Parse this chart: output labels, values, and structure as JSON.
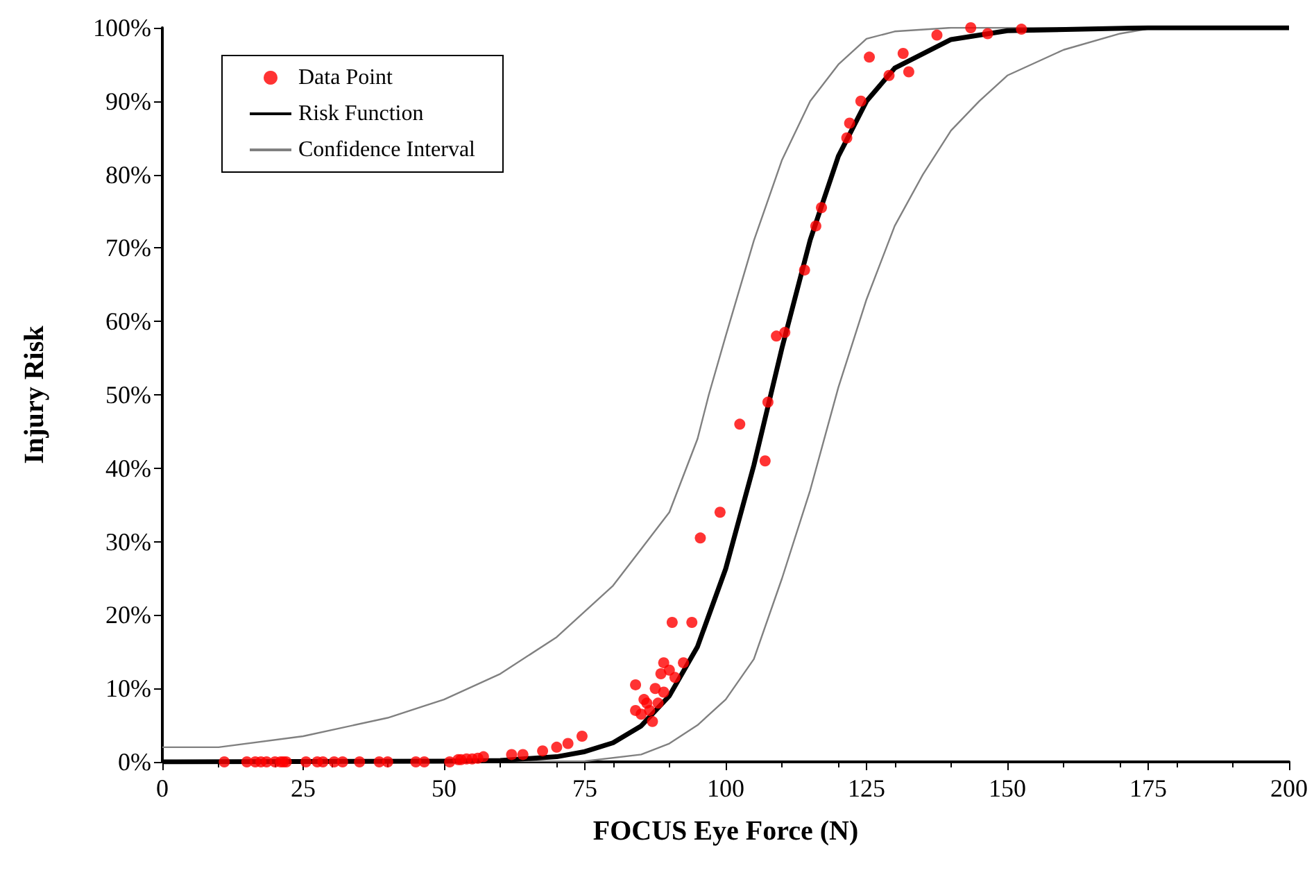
{
  "chart_data": {
    "type": "scatter",
    "xlabel": "FOCUS Eye Force (N)",
    "ylabel": "Injury Risk",
    "xlim": [
      0,
      200
    ],
    "xticks": [
      0,
      25,
      50,
      75,
      100,
      125,
      150,
      175,
      200
    ],
    "ylim": [
      0,
      100
    ],
    "yticks": [
      {
        "value": 0,
        "label": "0%"
      },
      {
        "value": 10,
        "label": "10%"
      },
      {
        "value": 20,
        "label": "20%"
      },
      {
        "value": 30,
        "label": "30%"
      },
      {
        "value": 40,
        "label": "40%"
      },
      {
        "value": 50,
        "label": "50%"
      },
      {
        "value": 60,
        "label": "60%"
      },
      {
        "value": 70,
        "label": "70%"
      },
      {
        "value": 80,
        "label": "80%"
      },
      {
        "value": 90,
        "label": "90%"
      },
      {
        "value": 100,
        "label": "100%"
      }
    ],
    "grid": false,
    "legend": "top left",
    "series": [
      {
        "name": "Data Point",
        "marker": "circle",
        "color": "#ff0000",
        "x": [
          11,
          15,
          16.5,
          17.5,
          18.5,
          20,
          21,
          21.5,
          22,
          25.5,
          27.5,
          28.5,
          30.5,
          32,
          35,
          38.5,
          40,
          45,
          46.5,
          51,
          52.5,
          53,
          54,
          55,
          56,
          57,
          62,
          64,
          67.5,
          70,
          72,
          74.5,
          84,
          84,
          85,
          85.5,
          86,
          86.5,
          87,
          87.5,
          88,
          88.5,
          89,
          89,
          90,
          90.5,
          91,
          92.5,
          94,
          95.5,
          99,
          102.5,
          107,
          107.5,
          109,
          110.5,
          114,
          116,
          117,
          121.5,
          122,
          124,
          125.5,
          129,
          131.5,
          132.5,
          137.5,
          143.5,
          146.5,
          152.5
        ],
        "values": [
          0,
          0,
          0,
          0,
          0,
          0,
          0,
          0,
          0,
          0,
          0,
          0,
          0,
          0,
          0,
          0,
          0,
          0,
          0,
          0,
          0.3,
          0.3,
          0.4,
          0.4,
          0.5,
          0.7,
          1,
          1,
          1.5,
          2,
          2.5,
          3.5,
          7,
          10.5,
          6.5,
          8.5,
          8,
          7,
          5.5,
          10,
          8,
          12,
          13.5,
          9.5,
          12.5,
          19,
          11.5,
          13.5,
          19,
          30.5,
          34,
          46,
          41,
          49,
          58,
          58.5,
          67,
          73,
          75.5,
          85,
          87,
          90,
          96,
          93.5,
          96.5,
          94,
          99,
          100,
          99.2,
          99.8
        ]
      },
      {
        "name": "Risk Function",
        "type": "line",
        "marker": "none",
        "line_style": "solid",
        "color": "#000000",
        "x": [
          0,
          50,
          60,
          70,
          75,
          80,
          85,
          90,
          95,
          100,
          105,
          108,
          110,
          115,
          120,
          125,
          130,
          140,
          150,
          175,
          200
        ],
        "values": [
          0,
          0.1,
          0.2,
          0.7,
          1.4,
          2.6,
          4.9,
          9,
          15.7,
          26.3,
          40.4,
          50,
          56.4,
          71.1,
          82.5,
          90,
          94.5,
          98.4,
          99.6,
          100,
          100
        ]
      },
      {
        "name": "Confidence Interval",
        "type": "line",
        "marker": "none",
        "line_style": "solid",
        "color": "#808080",
        "x": [
          0,
          10,
          25,
          40,
          50,
          60,
          70,
          80,
          85,
          90,
          95,
          97,
          100,
          105,
          110,
          115,
          120,
          125,
          130,
          140,
          200
        ],
        "values": [
          2,
          2,
          3.5,
          6,
          8.5,
          12,
          17,
          24,
          29,
          34,
          44,
          50,
          58,
          71,
          82,
          90,
          95,
          98.5,
          99.5,
          100,
          100
        ]
      },
      {
        "type": "line",
        "marker": "none",
        "line_style": "solid",
        "color": "#808080",
        "x": [
          0,
          75,
          85,
          90,
          95,
          100,
          105,
          110,
          115,
          120,
          125,
          130,
          135,
          140,
          145,
          150,
          160,
          170,
          176,
          200
        ],
        "values": [
          0,
          0.1,
          1,
          2.5,
          5,
          8.5,
          14,
          25,
          37,
          51,
          63,
          73,
          80,
          86,
          90,
          93.5,
          97,
          99.2,
          100,
          100
        ]
      }
    ]
  }
}
